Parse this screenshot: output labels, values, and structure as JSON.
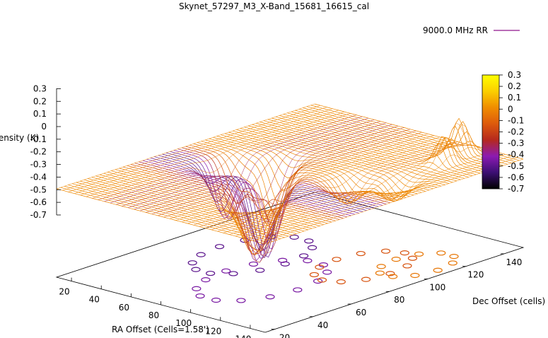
{
  "chart_data": {
    "type": "surface3d",
    "title": "Skynet_57297_M3_X-Band_15681_16615_cal",
    "zlabel": "Intensity (K)",
    "xlabel": "RA Offset (Cells=1.58')",
    "ylabel": "Dec Offset (cells)",
    "legend": {
      "label": "9000.0 MHz RR",
      "placement": "top-right"
    },
    "x_ticks": [
      "20",
      "40",
      "60",
      "80",
      "100",
      "120",
      "140"
    ],
    "y_ticks": [
      "20",
      "40",
      "60",
      "80",
      "100",
      "120",
      "140"
    ],
    "z_ticks": [
      "0.3",
      "0.2",
      "0.1",
      "0",
      "-0.1",
      "-0.2",
      "-0.3",
      "-0.4",
      "-0.5",
      "-0.6",
      "-0.7"
    ],
    "colorbar": {
      "ticks": [
        "0.3",
        "0.2",
        "0.1",
        "0",
        "-0.1",
        "-0.2",
        "-0.3",
        "-0.4",
        "-0.5",
        "-0.6",
        "-0.7"
      ],
      "range": [
        -0.7,
        0.3
      ],
      "stops": [
        "#000000",
        "#3b0f73",
        "#8c1ab2",
        "#b5291e",
        "#dd5a0c",
        "#f08d00",
        "#fbcf00",
        "#ffff00"
      ]
    },
    "xlim": [
      10,
      150
    ],
    "ylim": [
      15,
      150
    ],
    "zlim": [
      -0.7,
      0.3
    ],
    "surface": {
      "background_level": 0.0,
      "dips": [
        {
          "x": 44,
          "y": 78,
          "z": -0.45
        },
        {
          "x": 60,
          "y": 88,
          "z": -0.5
        },
        {
          "x": 75,
          "y": 74,
          "z": -0.62
        },
        {
          "x": 85,
          "y": 62,
          "z": -0.55
        },
        {
          "x": 96,
          "y": 52,
          "z": -0.42
        },
        {
          "x": 110,
          "y": 90,
          "z": -0.18
        },
        {
          "x": 128,
          "y": 100,
          "z": -0.15
        }
      ],
      "peaks": [
        {
          "x": 120,
          "y": 140,
          "z": 0.28
        },
        {
          "x": 125,
          "y": 128,
          "z": 0.22
        }
      ]
    }
  }
}
